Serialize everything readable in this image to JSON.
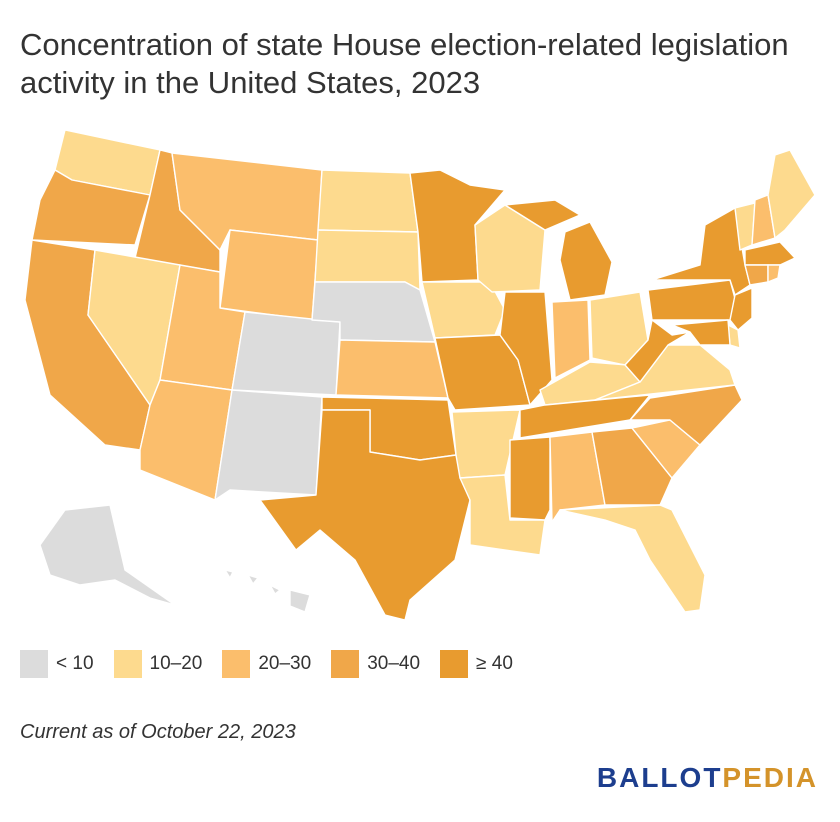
{
  "title": "Concentration of state House election-related legislation activity in the United States, 2023",
  "colors": {
    "lt10": "#dcdcdc",
    "b10_20": "#fdda8e",
    "b20_30": "#fbbe6c",
    "b30_40": "#f0a749",
    "ge40": "#e89b2f"
  },
  "legend": [
    {
      "label": "< 10",
      "color_key": "lt10"
    },
    {
      "label": "10–20",
      "color_key": "b10_20"
    },
    {
      "label": "20–30",
      "color_key": "b20_30"
    },
    {
      "label": "30–40",
      "color_key": "b30_40"
    },
    {
      "label": "≥ 40",
      "color_key": "ge40"
    }
  ],
  "states": [
    {
      "code": "WA",
      "category": "b10_20"
    },
    {
      "code": "OR",
      "category": "b30_40"
    },
    {
      "code": "CA",
      "category": "b30_40"
    },
    {
      "code": "ID",
      "category": "b30_40"
    },
    {
      "code": "NV",
      "category": "b10_20"
    },
    {
      "code": "MT",
      "category": "b20_30"
    },
    {
      "code": "WY",
      "category": "b20_30"
    },
    {
      "code": "UT",
      "category": "b20_30"
    },
    {
      "code": "AZ",
      "category": "b20_30"
    },
    {
      "code": "CO",
      "category": "lt10"
    },
    {
      "code": "NM",
      "category": "lt10"
    },
    {
      "code": "ND",
      "category": "b10_20"
    },
    {
      "code": "SD",
      "category": "b10_20"
    },
    {
      "code": "NE",
      "category": "lt10"
    },
    {
      "code": "KS",
      "category": "b20_30"
    },
    {
      "code": "OK",
      "category": "ge40"
    },
    {
      "code": "TX",
      "category": "ge40"
    },
    {
      "code": "MN",
      "category": "ge40"
    },
    {
      "code": "IA",
      "category": "b10_20"
    },
    {
      "code": "MO",
      "category": "ge40"
    },
    {
      "code": "AR",
      "category": "b10_20"
    },
    {
      "code": "LA",
      "category": "b10_20"
    },
    {
      "code": "WI",
      "category": "b10_20"
    },
    {
      "code": "IL",
      "category": "ge40"
    },
    {
      "code": "MI",
      "category": "ge40"
    },
    {
      "code": "IN",
      "category": "b20_30"
    },
    {
      "code": "OH",
      "category": "b10_20"
    },
    {
      "code": "KY",
      "category": "b10_20"
    },
    {
      "code": "TN",
      "category": "ge40"
    },
    {
      "code": "MS",
      "category": "ge40"
    },
    {
      "code": "AL",
      "category": "b20_30"
    },
    {
      "code": "GA",
      "category": "b30_40"
    },
    {
      "code": "FL",
      "category": "b10_20"
    },
    {
      "code": "SC",
      "category": "b20_30"
    },
    {
      "code": "NC",
      "category": "b30_40"
    },
    {
      "code": "VA",
      "category": "b10_20"
    },
    {
      "code": "WV",
      "category": "ge40"
    },
    {
      "code": "PA",
      "category": "ge40"
    },
    {
      "code": "NY",
      "category": "ge40"
    },
    {
      "code": "VT",
      "category": "b10_20"
    },
    {
      "code": "NH",
      "category": "b20_30"
    },
    {
      "code": "ME",
      "category": "b10_20"
    },
    {
      "code": "MA",
      "category": "ge40"
    },
    {
      "code": "CT",
      "category": "b30_40"
    },
    {
      "code": "RI",
      "category": "b20_30"
    },
    {
      "code": "NJ",
      "category": "ge40"
    },
    {
      "code": "DE",
      "category": "b10_20"
    },
    {
      "code": "MD",
      "category": "ge40"
    },
    {
      "code": "AK",
      "category": "lt10"
    },
    {
      "code": "HI",
      "category": "lt10"
    }
  ],
  "note": "Current as of October 22, 2023",
  "brand": {
    "part1": "BALLOT",
    "part2": "PEDIA"
  }
}
